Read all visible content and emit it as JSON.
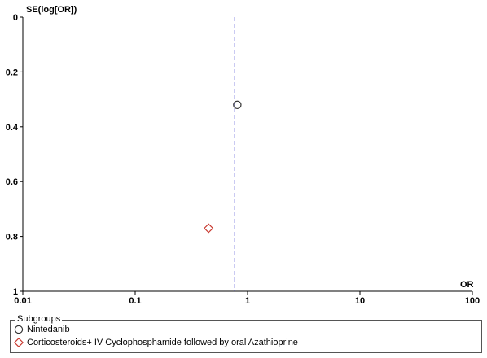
{
  "chart_data": {
    "type": "scatter",
    "xlabel": "OR",
    "ylabel": "SE(log[OR])",
    "xscale": "log",
    "xlim": [
      0.01,
      100
    ],
    "ylim": [
      0,
      1
    ],
    "y_inverted": true,
    "x_tick_labels": [
      "0.01",
      "0.1",
      "1",
      "10",
      "100"
    ],
    "x_ticks": [
      0.01,
      0.1,
      1,
      10,
      100
    ],
    "y_tick_labels": [
      "0",
      "0.2",
      "0.4",
      "0.6",
      "0.8",
      "1"
    ],
    "y_ticks": [
      0,
      0.2,
      0.4,
      0.6,
      0.8,
      1
    ],
    "reference_line": {
      "x": 0.77,
      "style": "dashed",
      "color": "#3a3acc"
    },
    "series": [
      {
        "name": "Nintedanib",
        "marker": "circle",
        "color": "#333333",
        "points": [
          {
            "x": 0.81,
            "y": 0.32
          }
        ]
      },
      {
        "name": "Corticosteroids+ IV Cyclophosphamide followed by oral Azathioprine",
        "marker": "diamond",
        "color": "#c8382e",
        "points": [
          {
            "x": 0.45,
            "y": 0.77
          }
        ]
      }
    ],
    "legend": {
      "title": "Subgroups",
      "placement": "bottom"
    },
    "grid": false
  }
}
